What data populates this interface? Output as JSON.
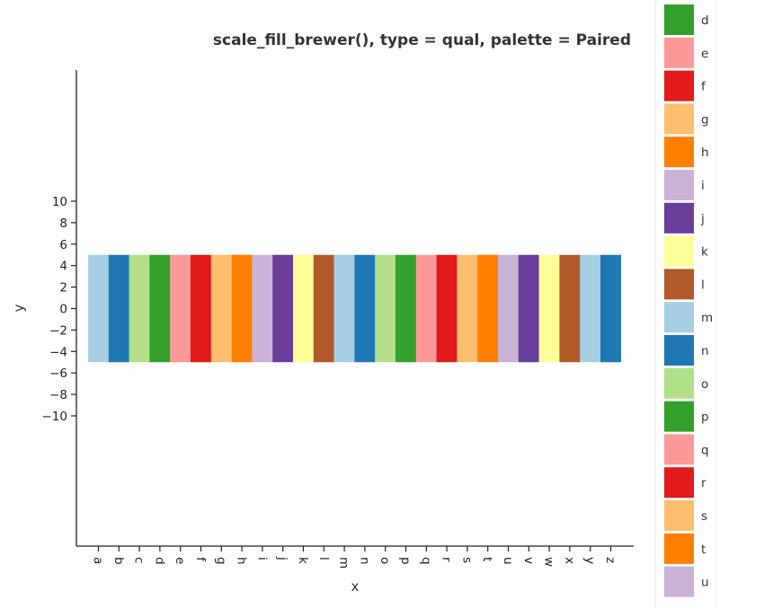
{
  "chart_data": {
    "type": "bar",
    "title": "scale_fill_brewer(), type = qual, palette = Paired",
    "xlabel": "x",
    "ylabel": "y",
    "categories": [
      "a",
      "b",
      "c",
      "d",
      "e",
      "f",
      "g",
      "h",
      "i",
      "j",
      "k",
      "l",
      "m",
      "n",
      "o",
      "p",
      "q",
      "r",
      "s",
      "t",
      "u",
      "v",
      "w",
      "x",
      "y",
      "z"
    ],
    "bars": {
      "ymin": -5,
      "ymax": 5
    },
    "ylim": [
      -11,
      11
    ],
    "yticks": [
      -10,
      -8,
      -6,
      -4,
      -2,
      0,
      2,
      4,
      6,
      8,
      10
    ],
    "grid": false,
    "legend": {
      "position": "right",
      "visible_entries": [
        "d",
        "e",
        "f",
        "g",
        "h",
        "i",
        "j",
        "k",
        "l",
        "m",
        "n",
        "o",
        "p",
        "q",
        "r",
        "s",
        "t",
        "u"
      ]
    },
    "palette": [
      "#a6cee3",
      "#1f78b4",
      "#b2df8a",
      "#33a02c",
      "#fb9a99",
      "#e31a1c",
      "#fdbf6f",
      "#ff7f00",
      "#cab2d6",
      "#6a3d9a",
      "#ffff99",
      "#b15928"
    ]
  }
}
